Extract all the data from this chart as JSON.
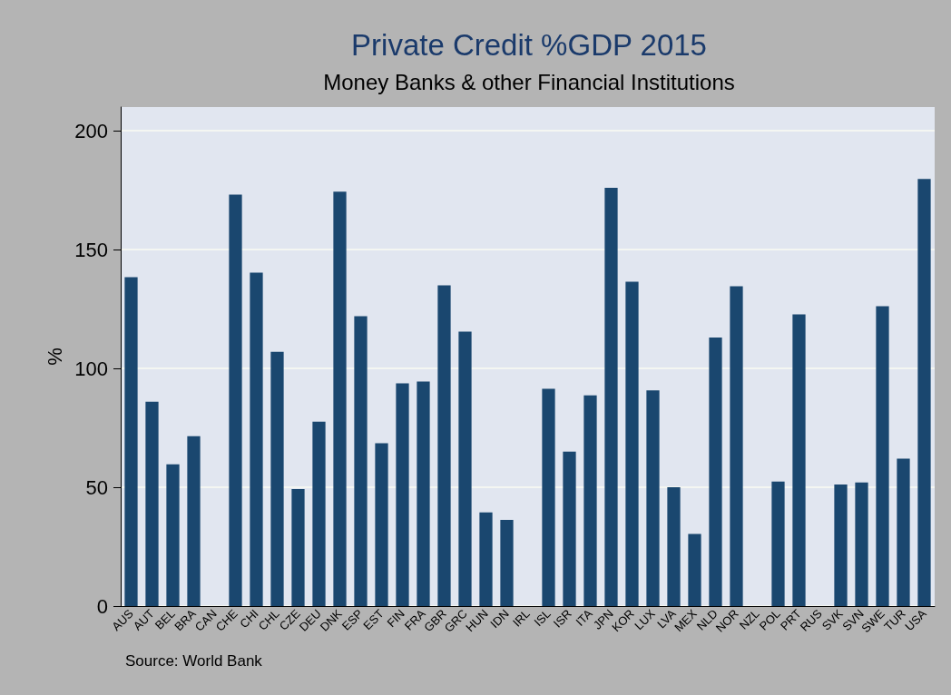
{
  "chart_data": {
    "type": "bar",
    "title": "Private Credit %GDP 2015",
    "subtitle": "Money Banks & other Financial Institutions",
    "ylabel": "%",
    "categories": [
      "AUS",
      "AUT",
      "BEL",
      "BRA",
      "CAN",
      "CHE",
      "CHI",
      "CHL",
      "CZE",
      "DEU",
      "DNK",
      "ESP",
      "EST",
      "FIN",
      "FRA",
      "GBR",
      "GRC",
      "HUN",
      "IDN",
      "IRL",
      "ISL",
      "ISR",
      "ITA",
      "JPN",
      "KOR",
      "LUX",
      "LVA",
      "MEX",
      "NLD",
      "NOR",
      "NZL",
      "POL",
      "PRT",
      "RUS",
      "SVK",
      "SVN",
      "SWE",
      "TUR",
      "USA"
    ],
    "values": [
      138.4,
      86,
      59.7,
      71.5,
      null,
      173.2,
      140.3,
      107,
      49.3,
      77.6,
      174.4,
      122,
      68.5,
      93.7,
      94.5,
      135,
      115.5,
      39.4,
      36.3,
      null,
      91.4,
      65,
      88.7,
      176,
      136.5,
      90.8,
      50,
      30.4,
      113,
      134.6,
      null,
      52.4,
      122.8,
      null,
      51.2,
      52,
      126.2,
      62,
      179.7
    ],
    "color": "#1a476f",
    "ylim": [
      0,
      210
    ],
    "yticks": [
      0,
      50,
      100,
      150,
      200
    ],
    "grid": "y",
    "annotations": [
      "Source: World Bank"
    ]
  }
}
